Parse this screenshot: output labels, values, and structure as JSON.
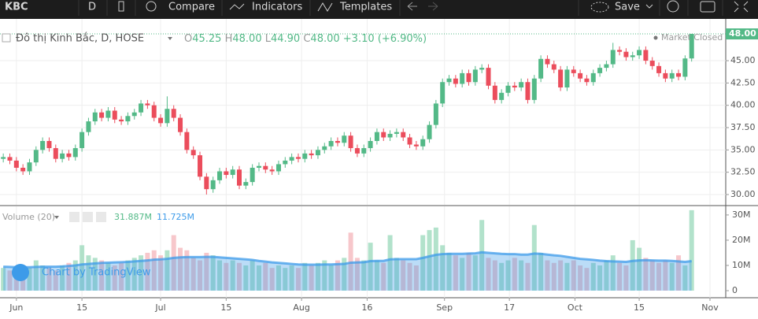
{
  "toolbar": {
    "symbol": "KBC",
    "interval": "D",
    "compare": "Compare",
    "indicators": "Indicators",
    "templates": "Templates",
    "save": "Save"
  },
  "watermark": "Chart by TradingView",
  "chart_data": [
    {
      "type": "candlestick",
      "title": "Đô thị Kinh Bắc, D, HOSE",
      "header": [
        {
          "key": "O",
          "text": "45.25"
        },
        {
          "key": "H",
          "text": "48.00"
        },
        {
          "key": "L",
          "text": "44.90"
        },
        {
          "key": "C",
          "text": "48.00"
        }
      ],
      "change": "+3.10 (+6.90%)",
      "status": "Market Closed",
      "last_price": {
        "value": 48,
        "label": "48.00"
      },
      "up_color": "#53b987",
      "down_color": "#eb4d5c",
      "open": [
        34.0,
        34.2,
        33.8,
        33.0,
        32.6,
        33.6,
        35.0,
        36.0,
        35.2,
        34.0,
        34.6,
        34.2,
        35.2,
        37.0,
        38.2,
        39.2,
        38.6,
        39.4,
        38.4,
        38.2,
        38.8,
        39.2,
        40.2,
        40.0,
        38.6,
        38.0,
        39.6,
        38.6,
        37.0,
        35.0,
        34.4,
        32.0,
        30.6,
        31.6,
        32.6,
        32.2,
        32.8,
        31.0,
        31.4,
        33.0,
        33.2,
        32.8,
        32.6,
        33.4,
        33.8,
        34.2,
        34.0,
        34.6,
        34.4,
        35.0,
        35.4,
        36.0,
        35.8,
        36.6,
        35.2,
        34.6,
        35.2,
        36.0,
        37.0,
        36.4,
        36.8,
        37.0,
        36.4,
        35.6,
        35.4,
        36.2,
        37.8,
        40.2,
        42.6,
        43.0,
        42.4,
        43.6,
        42.6,
        44.0,
        44.2,
        42.2,
        40.6,
        41.4,
        42.2,
        42.0,
        42.6,
        40.6,
        43.0,
        45.2,
        44.6,
        44.0,
        42.0,
        44.0,
        43.6,
        43.0,
        42.6,
        43.6,
        44.2,
        44.6,
        46.2,
        46.0,
        45.4,
        45.6,
        46.2,
        45.0,
        44.4,
        43.6,
        43.0,
        43.6,
        43.2,
        45.25
      ],
      "high": [
        34.6,
        34.6,
        34.2,
        33.4,
        34.0,
        35.4,
        36.4,
        36.4,
        35.6,
        35.0,
        35.0,
        35.6,
        37.4,
        38.6,
        39.6,
        39.6,
        39.8,
        39.8,
        38.8,
        39.2,
        39.6,
        40.6,
        40.6,
        40.4,
        39.0,
        41.0,
        40.0,
        39.0,
        37.4,
        35.4,
        34.8,
        32.4,
        32.0,
        33.0,
        33.0,
        33.2,
        33.2,
        31.8,
        33.4,
        33.6,
        33.6,
        33.2,
        33.8,
        34.2,
        34.6,
        34.6,
        35.0,
        35.0,
        35.4,
        35.8,
        36.4,
        36.4,
        37.0,
        37.0,
        35.6,
        35.6,
        36.4,
        37.4,
        37.4,
        37.2,
        37.4,
        37.4,
        36.8,
        36.0,
        36.6,
        38.2,
        40.6,
        43.0,
        43.4,
        43.4,
        44.0,
        44.0,
        44.4,
        44.6,
        44.6,
        42.6,
        41.8,
        42.6,
        42.6,
        43.0,
        43.0,
        43.4,
        45.6,
        45.6,
        45.0,
        44.4,
        44.4,
        44.4,
        44.0,
        43.4,
        44.0,
        44.6,
        45.0,
        47.0,
        46.6,
        46.4,
        46.0,
        46.6,
        46.6,
        45.4,
        44.8,
        44.0,
        44.0,
        44.0,
        45.6,
        48.0
      ],
      "low": [
        33.6,
        33.4,
        32.6,
        32.2,
        32.2,
        33.2,
        34.6,
        34.8,
        33.6,
        33.6,
        33.8,
        33.8,
        34.8,
        36.6,
        37.8,
        38.2,
        38.2,
        38.0,
        37.8,
        37.8,
        38.4,
        38.8,
        39.6,
        38.2,
        37.6,
        37.6,
        38.2,
        36.6,
        34.6,
        34.0,
        31.6,
        30.0,
        30.2,
        31.2,
        31.8,
        31.8,
        30.6,
        30.6,
        31.0,
        32.6,
        32.4,
        32.2,
        32.2,
        33.0,
        33.4,
        33.6,
        33.6,
        34.0,
        34.0,
        34.6,
        35.0,
        35.4,
        35.4,
        34.8,
        34.2,
        34.2,
        34.8,
        35.6,
        36.0,
        36.0,
        36.4,
        36.0,
        35.2,
        35.0,
        35.0,
        35.8,
        37.4,
        39.8,
        42.2,
        42.0,
        42.0,
        42.2,
        42.2,
        43.6,
        41.8,
        40.2,
        40.2,
        41.0,
        41.6,
        41.6,
        40.2,
        40.2,
        42.6,
        44.2,
        43.6,
        41.6,
        41.6,
        43.2,
        42.6,
        42.2,
        42.2,
        43.2,
        43.8,
        44.2,
        45.6,
        45.0,
        45.0,
        45.2,
        44.6,
        44.0,
        43.2,
        42.6,
        42.6,
        42.8,
        42.8,
        44.9
      ],
      "close": [
        34.2,
        33.8,
        33.0,
        32.6,
        33.6,
        35.0,
        36.0,
        35.2,
        34.0,
        34.6,
        34.2,
        35.2,
        37.0,
        38.2,
        39.2,
        38.6,
        39.4,
        38.4,
        38.2,
        38.8,
        39.2,
        40.2,
        40.0,
        38.6,
        38.0,
        39.6,
        38.6,
        37.0,
        35.0,
        34.4,
        32.0,
        30.6,
        31.6,
        32.6,
        32.2,
        32.8,
        31.0,
        31.4,
        33.0,
        33.2,
        32.8,
        32.6,
        33.4,
        33.8,
        34.2,
        34.0,
        34.6,
        34.4,
        35.0,
        35.4,
        36.0,
        35.8,
        36.6,
        35.2,
        34.6,
        35.2,
        36.0,
        37.0,
        36.4,
        36.8,
        37.0,
        36.4,
        35.6,
        35.4,
        36.2,
        37.8,
        40.2,
        42.6,
        43.0,
        42.4,
        43.6,
        42.6,
        44.0,
        44.2,
        42.2,
        40.6,
        41.4,
        42.2,
        42.0,
        42.6,
        40.6,
        43.0,
        45.2,
        44.6,
        44.0,
        42.0,
        44.0,
        43.6,
        43.0,
        42.6,
        43.6,
        44.2,
        44.6,
        46.2,
        46.0,
        45.4,
        45.6,
        46.2,
        45.0,
        44.4,
        43.6,
        43.0,
        43.6,
        43.2,
        45.25,
        48.0
      ],
      "xlim": [
        -0.5,
        110.2
      ],
      "xticks": [
        {
          "value": 2,
          "label": "Jun"
        },
        {
          "value": 12,
          "label": "15"
        },
        {
          "value": 24,
          "label": "Jul"
        },
        {
          "value": 34,
          "label": "15"
        },
        {
          "value": 45.5,
          "label": "Aug"
        },
        {
          "value": 55.5,
          "label": "16"
        },
        {
          "value": 67.3,
          "label": "Sep"
        },
        {
          "value": 77.2,
          "label": "17"
        },
        {
          "value": 87.2,
          "label": "Oct"
        },
        {
          "value": 97,
          "label": "15"
        },
        {
          "value": 107.8,
          "label": "Nov"
        }
      ],
      "ylim": [
        28.85,
        48.27
      ],
      "yticks": [
        {
          "value": 30,
          "label": "30.00"
        },
        {
          "value": 32.5,
          "label": "32.50"
        },
        {
          "value": 35,
          "label": "35.00"
        },
        {
          "value": 37.5,
          "label": "37.50"
        },
        {
          "value": 40,
          "label": "40.00"
        },
        {
          "value": 42.5,
          "label": "42.50"
        },
        {
          "value": 45,
          "label": "45.00"
        }
      ],
      "grid": true
    },
    {
      "type": "volume",
      "title": "Volume (20)",
      "series": [
        {
          "color": "#7fcfa8",
          "down_color": "#f2a1a9",
          "last_label": "31.887M",
          "values": [
            9,
            8,
            7,
            8,
            9,
            12,
            10,
            9,
            8,
            10,
            11,
            12,
            18,
            14,
            13,
            12,
            11,
            10,
            11,
            12,
            13,
            14,
            15,
            16,
            14,
            16,
            22,
            17,
            16,
            13,
            12,
            15,
            14,
            12,
            11,
            12,
            11,
            10,
            12,
            10,
            11,
            9,
            10,
            9,
            10,
            9,
            11,
            10,
            11,
            12,
            10,
            12,
            13,
            23,
            13,
            12,
            19,
            12,
            11,
            22,
            13,
            12,
            11,
            10,
            22,
            24,
            25,
            18,
            15,
            14,
            13,
            15,
            14,
            28,
            13,
            12,
            11,
            12,
            13,
            12,
            11,
            26,
            15,
            12,
            11,
            12,
            11,
            12,
            10,
            9,
            11,
            10,
            12,
            14,
            11,
            10,
            20,
            17,
            13,
            12,
            11,
            12,
            11,
            14,
            10,
            31.887
          ]
        },
        {
          "color": "#3d9be9",
          "last_label": "11.725M",
          "values": [
            9.5,
            9.4,
            9.3,
            9.3,
            9.3,
            9.4,
            9.5,
            9.5,
            9.5,
            9.6,
            9.8,
            10.0,
            10.4,
            10.6,
            10.8,
            11.0,
            11.1,
            11.2,
            11.3,
            11.4,
            11.6,
            11.8,
            12.0,
            12.3,
            12.4,
            12.6,
            13.0,
            13.2,
            13.3,
            13.3,
            13.3,
            13.4,
            13.4,
            13.2,
            13.0,
            12.8,
            12.6,
            12.4,
            12.2,
            11.8,
            11.5,
            11.2,
            11.0,
            10.8,
            10.6,
            10.4,
            10.3,
            10.3,
            10.3,
            10.4,
            10.4,
            10.5,
            10.6,
            11.1,
            11.2,
            11.3,
            11.7,
            11.8,
            11.8,
            12.4,
            12.5,
            12.5,
            12.5,
            12.5,
            13.0,
            13.6,
            14.2,
            14.5,
            14.6,
            14.6,
            14.6,
            14.7,
            14.8,
            15.2,
            15.0,
            14.8,
            14.6,
            14.5,
            14.5,
            14.3,
            14.3,
            14.7,
            14.6,
            14.3,
            14.0,
            13.8,
            13.4,
            13.0,
            12.6,
            12.4,
            12.2,
            11.9,
            11.7,
            11.6,
            11.5,
            11.4,
            11.8,
            12.0,
            12.1,
            12.0,
            11.9,
            11.9,
            11.8,
            11.6,
            11.4,
            11.725
          ]
        }
      ],
      "ylim": [
        -2.8,
        33.4
      ],
      "yticks": [
        0,
        {
          "value": 10,
          "label": "10M"
        },
        {
          "value": 20,
          "label": "20M"
        },
        {
          "value": 30,
          "label": "30M"
        }
      ]
    }
  ]
}
